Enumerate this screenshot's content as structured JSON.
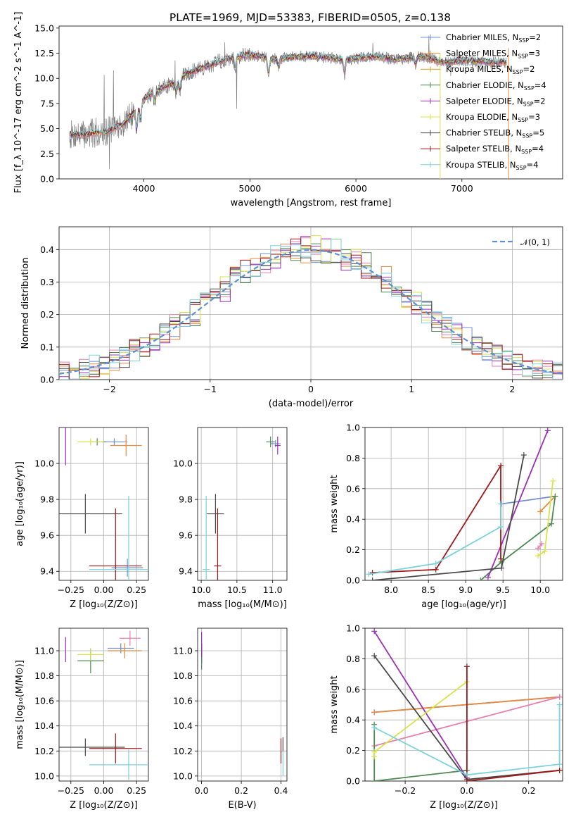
{
  "figure": {
    "title": "PLATE=1969, MJD=53383, FIBERID=0505, z=0.138"
  },
  "chart_data": [
    {
      "type": "line",
      "name": "spectrum-panel",
      "xlabel": "wavelength [Angstrom, rest frame]",
      "ylabel": "Flux [f_λ 10^-17 erg cm^-2 s^-1 A^-1]",
      "xlim": [
        3200,
        7950
      ],
      "ylim": [
        0,
        15.2
      ],
      "xticks": [
        "4000",
        "5000",
        "6000",
        "7000"
      ],
      "yticks": [
        "0.0",
        "2.5",
        "5.0",
        "7.5",
        "10.0",
        "12.5",
        "15.0"
      ],
      "grid": false,
      "legend_position": "right",
      "legend": [
        {
          "label": "Chabrier MILES, N",
          "sub": "SSP",
          "tail": "=2",
          "color": "#6f8fd4"
        },
        {
          "label": "Salpeter MILES, N",
          "sub": "SSP",
          "tail": "=3",
          "color": "#e8893c"
        },
        {
          "label": "Kroupa MILES, N",
          "sub": "SSP",
          "tail": "=2",
          "color": "#d9a21c"
        },
        {
          "label": "Chabrier ELODIE, N",
          "sub": "SSP",
          "tail": "=4",
          "color": "#4e8a52"
        },
        {
          "label": "Salpeter ELODIE, N",
          "sub": "SSP",
          "tail": "=2",
          "color": "#9b2fb6"
        },
        {
          "label": "Kroupa ELODIE, N",
          "sub": "SSP",
          "tail": "=3",
          "color": "#d8e34a"
        },
        {
          "label": "Chabrier STELIB, N",
          "sub": "SSP",
          "tail": "=5",
          "color": "#4a4a4a"
        },
        {
          "label": "Salpeter STELIB, N",
          "sub": "SSP",
          "tail": "=4",
          "color": "#a01818"
        },
        {
          "label": "Kroupa STELIB, N",
          "sub": "SSP",
          "tail": "=4",
          "color": "#7ad3dc"
        }
      ],
      "continuum": {
        "x": [
          3300,
          3450,
          3550,
          3650,
          3700,
          3800,
          3900,
          4000,
          4100,
          4200,
          4300,
          4400,
          4500,
          4600,
          4700,
          4800,
          4900,
          5000,
          5100,
          5200,
          5300,
          5400,
          5500,
          5600,
          5700,
          5800,
          5900,
          6000,
          6100,
          6200,
          6300,
          6400,
          6500,
          6600,
          6700,
          6800,
          6900,
          7000,
          7100,
          7200,
          7300,
          7400
        ],
        "y": [
          4.4,
          4.4,
          4.6,
          4.7,
          5.0,
          5.4,
          6.5,
          8.0,
          8.6,
          9.2,
          9.6,
          10.5,
          10.8,
          11.2,
          11.6,
          12.0,
          12.2,
          12.3,
          12.2,
          11.9,
          12.0,
          12.1,
          12.2,
          12.2,
          12.1,
          12.0,
          11.8,
          12.0,
          12.1,
          12.2,
          12.0,
          11.9,
          12.0,
          12.2,
          12.0,
          11.6,
          11.6,
          11.8,
          11.7,
          11.7,
          11.6,
          11.6
        ]
      }
    },
    {
      "type": "bar",
      "name": "residual-histograms",
      "xlabel": "(data-model)/error",
      "ylabel": "Normed distribution",
      "xlim": [
        -2.5,
        2.5
      ],
      "ylim": [
        0,
        0.47
      ],
      "xticks": [
        "−2",
        "−1",
        "0",
        "1",
        "2"
      ],
      "yticks": [
        "0.0",
        "0.1",
        "0.2",
        "0.3",
        "0.4"
      ],
      "grid": true,
      "legend": [
        {
          "label": "𝒩(0, 1)",
          "color": "#5f8fd6",
          "style": "dashed"
        }
      ],
      "bins": {
        "start": -2.5,
        "width": 0.1
      }
    },
    {
      "type": "scatter",
      "name": "age-vs-Z",
      "xlabel": "Z [log₁₀(Z/Z⊙)]",
      "ylabel": "age  [log₁₀(age/yr)]",
      "xlim": [
        -0.34,
        0.34
      ],
      "ylim": [
        9.35,
        10.2
      ],
      "xticks": [
        "−0.25",
        "0.00",
        "0.25"
      ],
      "yticks": [
        "9.4",
        "9.6",
        "9.8",
        "10.0"
      ],
      "grid": true
    },
    {
      "type": "scatter",
      "name": "age-vs-mass",
      "xlabel": "mass [log₁₀(M/M⊙)]",
      "ylabel": "",
      "xlim": [
        9.95,
        11.2
      ],
      "ylim": [
        9.35,
        10.2
      ],
      "xticks": [
        "10.0",
        "10.5",
        "11.0"
      ],
      "yticks": [
        "9.4",
        "9.6",
        "9.8",
        "10.0"
      ],
      "grid": true
    },
    {
      "type": "line",
      "name": "mass-weight-vs-age",
      "xlabel": "age  [log₁₀(age/yr)]",
      "ylabel": "mass weight",
      "xlim": [
        7.65,
        10.3
      ],
      "ylim": [
        0,
        1
      ],
      "xticks": [
        "8.0",
        "8.5",
        "9.0",
        "9.5",
        "10.0"
      ],
      "yticks": [
        "0.0",
        "0.2",
        "0.4",
        "0.6",
        "0.8",
        "1.0"
      ],
      "grid": true
    },
    {
      "type": "scatter",
      "name": "mass-vs-Z",
      "xlabel": "Z [log₁₀(Z/Z⊙)]",
      "ylabel": "mass [log₁₀(M/M⊙)]",
      "xlim": [
        -0.34,
        0.34
      ],
      "ylim": [
        9.96,
        11.18
      ],
      "xticks": [
        "−0.25",
        "0.00",
        "0.25"
      ],
      "yticks": [
        "10.0",
        "10.2",
        "10.4",
        "10.6",
        "10.8",
        "11.0"
      ],
      "grid": true
    },
    {
      "type": "scatter",
      "name": "mass-vs-EBV",
      "xlabel": "E(B-V)",
      "ylabel": "",
      "xlim": [
        -0.02,
        0.43
      ],
      "ylim": [
        9.96,
        11.18
      ],
      "xticks": [
        "0.0",
        "0.2",
        "0.4"
      ],
      "yticks": [
        "10.0",
        "10.2",
        "10.4",
        "10.6",
        "10.8",
        "11.0"
      ],
      "grid": true
    },
    {
      "type": "line",
      "name": "mass-weight-vs-Z",
      "xlabel": "Z [log₁₀(Z/Z⊙)]",
      "ylabel": "mass weight",
      "xlim": [
        -0.33,
        0.31
      ],
      "ylim": [
        0,
        1
      ],
      "xticks": [
        "−0.2",
        "0.0",
        "0.2"
      ],
      "yticks": [
        "0.0",
        "0.2",
        "0.4",
        "0.6",
        "0.8",
        "1.0"
      ],
      "grid": true
    }
  ],
  "models": [
    {
      "color": "#6f8fd4",
      "ageZ": [
        {
          "z": 0.08,
          "a": 10.12,
          "ze": 0.1,
          "ae": 0.02
        },
        {
          "z": 0.18,
          "a": 9.42,
          "ze": 0.12,
          "ae": 0.05
        }
      ],
      "mw_age": [
        [
          9.48,
          0.5
        ],
        [
          10.2,
          0.55
        ]
      ],
      "mw_Z": [
        [
          -0.3,
          0.45
        ],
        [
          0.3,
          0.55
        ]
      ],
      "massZ": [
        {
          "z": 0.13,
          "m": 11.02,
          "ze": 0.1,
          "me": 0.04
        }
      ],
      "massAge": [
        {
          "m": 11.04,
          "a": 10.11,
          "me": 0.07,
          "ae": 0.02
        }
      ],
      "ebv": [
        {
          "e": 0.001,
          "m": 10.98,
          "ee": 0.0,
          "me": 0.08
        }
      ]
    },
    {
      "color": "#e8893c",
      "ageZ": [
        {
          "z": 0.17,
          "a": 10.1,
          "ze": 0.12,
          "ae": 0.06
        }
      ],
      "mw_age": [
        [
          10.0,
          0.45
        ],
        [
          10.2,
          0.55
        ]
      ],
      "mw_Z": [
        [
          -0.3,
          0.45
        ],
        [
          0.3,
          0.55
        ]
      ],
      "massZ": [
        {
          "z": 0.16,
          "m": 11.0,
          "ze": 0.13,
          "me": 0.06
        }
      ],
      "massAge": [],
      "ebv": []
    },
    {
      "color": "#e87fb0",
      "ageZ": [],
      "mw_age": [
        [
          9.97,
          0.21
        ],
        [
          10.02,
          0.24
        ]
      ],
      "mw_Z": [
        [
          -0.3,
          0.23
        ],
        [
          0.3,
          0.55
        ]
      ],
      "massZ": [
        {
          "z": 0.2,
          "m": 11.1,
          "ze": 0.08,
          "me": 0.06
        }
      ],
      "massAge": [],
      "ebv": []
    },
    {
      "color": "#4e8a52",
      "ageZ": [
        {
          "z": -0.05,
          "a": 10.12,
          "ze": 0.07,
          "ae": 0.02
        }
      ],
      "mw_age": [
        [
          9.2,
          0.0
        ],
        [
          9.48,
          0.12
        ],
        [
          10.15,
          0.37
        ],
        [
          10.2,
          0.55
        ]
      ],
      "mw_Z": [
        [
          -0.3,
          0.37
        ],
        [
          -0.3,
          0.0
        ],
        [
          0.0,
          0.07
        ]
      ],
      "massZ": [
        {
          "z": -0.1,
          "m": 10.92,
          "ze": 0.1,
          "me": 0.1
        }
      ],
      "massAge": [
        {
          "m": 10.97,
          "a": 10.12,
          "me": 0.06,
          "ae": 0.03
        }
      ],
      "ebv": [
        {
          "e": 0.0,
          "m": 10.95,
          "ee": 0.0,
          "me": 0.1
        }
      ]
    },
    {
      "color": "#9b2fb6",
      "ageZ": [
        {
          "z": -0.29,
          "a": 10.11,
          "ze": 0.0,
          "ae": 0.12
        }
      ],
      "mw_age": [
        [
          9.3,
          0.02
        ],
        [
          10.1,
          0.98
        ]
      ],
      "mw_Z": [
        [
          -0.3,
          0.98
        ],
        [
          0.0,
          0.02
        ]
      ],
      "massZ": [
        {
          "z": -0.29,
          "m": 11.01,
          "ze": 0.0,
          "me": 0.1
        }
      ],
      "massAge": [
        {
          "m": 11.07,
          "a": 10.1,
          "me": 0.04,
          "ae": 0.05
        }
      ],
      "ebv": [
        {
          "e": 0.0,
          "m": 11.05,
          "ee": 0.0,
          "me": 0.1
        }
      ]
    },
    {
      "color": "#d8e34a",
      "ageZ": [
        {
          "z": -0.1,
          "a": 10.12,
          "ze": 0.1,
          "ae": 0.02
        }
      ],
      "mw_age": [
        [
          9.97,
          0.16
        ],
        [
          10.06,
          0.19
        ],
        [
          10.17,
          0.65
        ]
      ],
      "mw_Z": [
        [
          -0.3,
          0.16
        ],
        [
          -0.3,
          0.19
        ],
        [
          0.0,
          0.65
        ]
      ],
      "massZ": [
        {
          "z": -0.1,
          "m": 10.97,
          "ze": 0.1,
          "me": 0.05
        }
      ],
      "massAge": [],
      "ebv": []
    },
    {
      "color": "#4a4a4a",
      "ageZ": [
        {
          "z": -0.14,
          "a": 9.72,
          "ze": 0.28,
          "ae": 0.11
        }
      ],
      "mw_age": [
        [
          7.75,
          0.0
        ],
        [
          9.48,
          0.08
        ],
        [
          9.78,
          0.82
        ]
      ],
      "mw_Z": [
        [
          -0.3,
          0.82
        ],
        [
          0.0,
          0.01
        ],
        [
          0.3,
          0.07
        ]
      ],
      "massZ": [
        {
          "z": -0.14,
          "m": 10.23,
          "ze": 0.3,
          "me": 0.07
        }
      ],
      "massAge": [
        {
          "m": 10.2,
          "a": 9.72,
          "me": 0.12,
          "ae": 0.11
        }
      ],
      "ebv": [
        {
          "e": 0.41,
          "m": 10.25,
          "ee": 0.0,
          "me": 0.06
        }
      ]
    },
    {
      "color": "#a01818",
      "ageZ": [
        {
          "z": 0.09,
          "a": 9.43,
          "ze": 0.2,
          "ae": 0.32
        }
      ],
      "mw_age": [
        [
          7.75,
          0.05
        ],
        [
          8.6,
          0.07
        ],
        [
          9.47,
          0.75
        ],
        [
          9.47,
          0.14
        ]
      ],
      "mw_Z": [
        [
          0.0,
          0.75
        ],
        [
          0.0,
          0.0
        ],
        [
          0.3,
          0.07
        ]
      ],
      "massZ": [
        {
          "z": 0.09,
          "m": 10.22,
          "ze": 0.2,
          "me": 0.12
        }
      ],
      "massAge": [
        {
          "m": 10.23,
          "a": 9.43,
          "me": 0.05,
          "ae": 0.32
        }
      ],
      "ebv": [
        {
          "e": 0.4,
          "m": 10.2,
          "ee": 0.0,
          "me": 0.1
        }
      ]
    },
    {
      "color": "#7ad3dc",
      "ageZ": [
        {
          "z": 0.19,
          "a": 9.41,
          "ze": 0.3,
          "ae": 0.41
        }
      ],
      "mw_age": [
        [
          7.7,
          0.04
        ],
        [
          8.6,
          0.11
        ],
        [
          9.47,
          0.35
        ],
        [
          9.47,
          0.5
        ]
      ],
      "mw_Z": [
        [
          -0.3,
          0.35
        ],
        [
          0.0,
          0.04
        ],
        [
          0.3,
          0.11
        ],
        [
          0.3,
          0.5
        ]
      ],
      "massZ": [
        {
          "z": 0.19,
          "m": 10.09,
          "ze": 0.3,
          "me": 0.12
        }
      ],
      "massAge": [
        {
          "m": 10.07,
          "a": 9.41,
          "me": 0.05,
          "ae": 0.41
        }
      ],
      "ebv": [
        {
          "e": 0.41,
          "m": 10.1,
          "ee": 0.0,
          "me": 0.1
        }
      ]
    }
  ]
}
